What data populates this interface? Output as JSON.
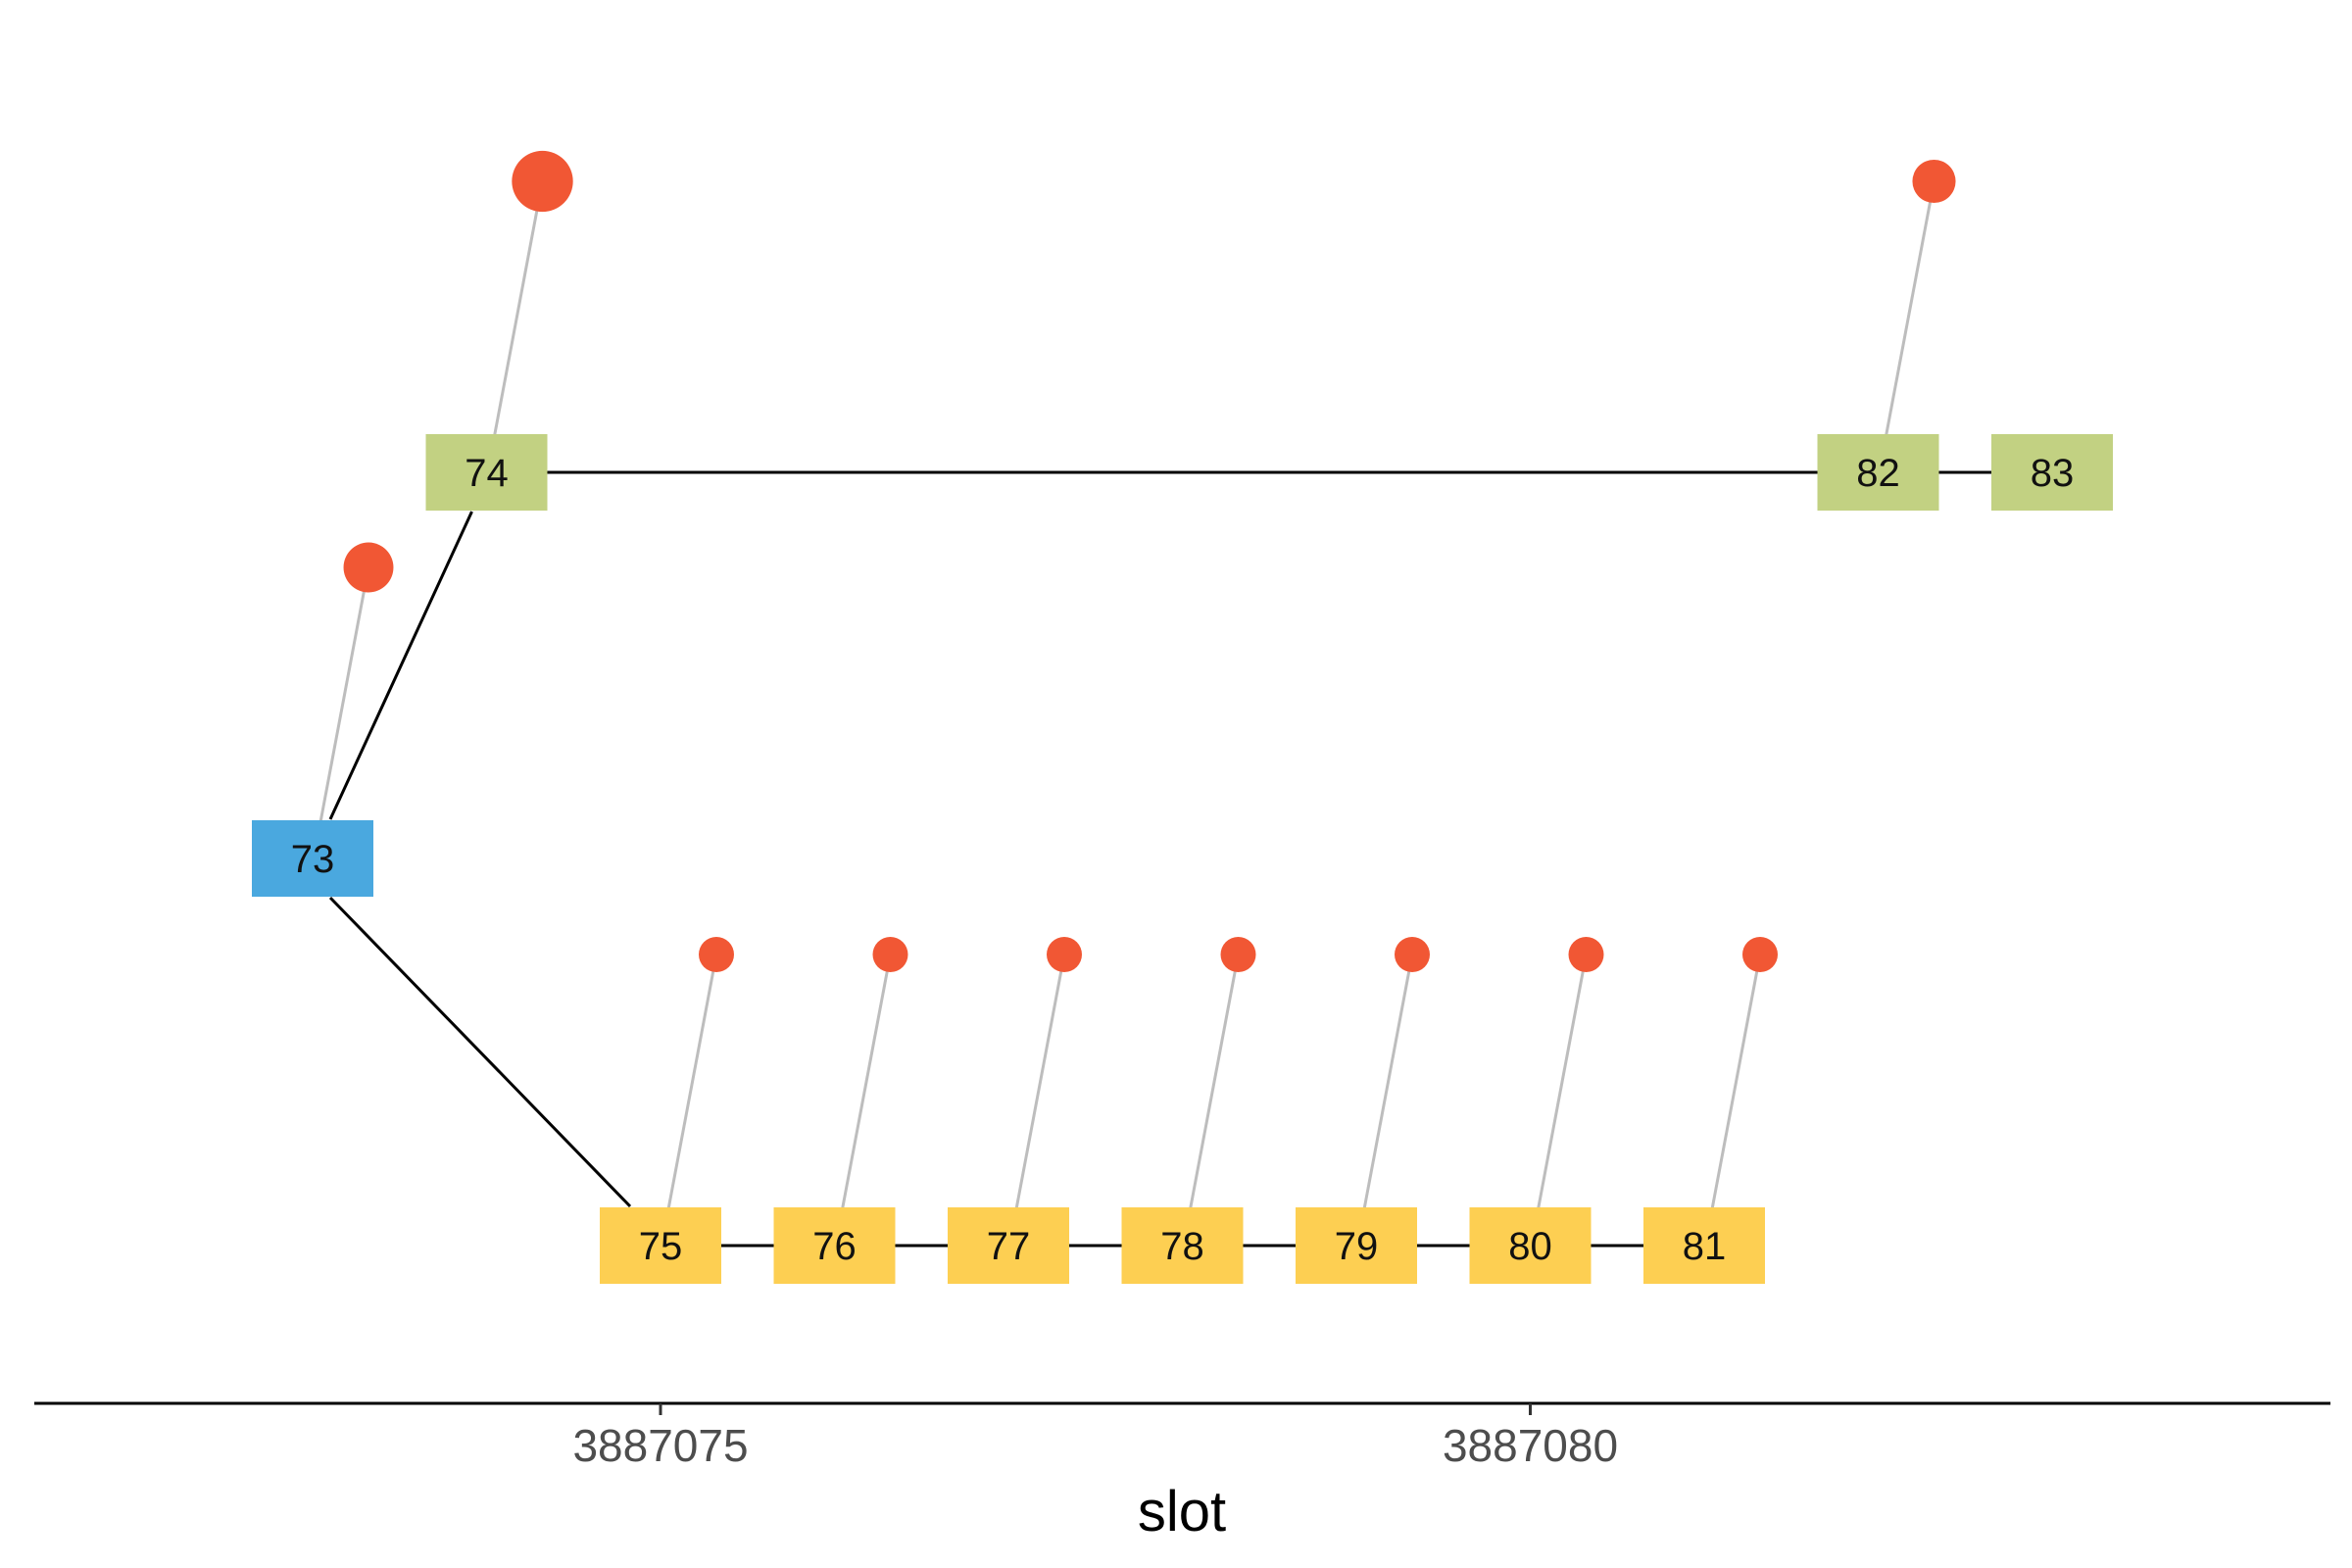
{
  "chart_data": {
    "type": "tree-timeline",
    "xlabel": "slot",
    "x_ticks": [
      3887075,
      3887080
    ],
    "x_range": [
      3887071.4,
      3887084.6
    ],
    "colors": {
      "chain_root": "#4aa8df",
      "chain_green": "#c2d182",
      "chain_yellow": "#fdcf52",
      "attestation": "#f15734",
      "edge": "#000000",
      "stem": "#bdbdbd"
    },
    "nodes": [
      {
        "id": "73",
        "slot": 3887073,
        "row": 2,
        "group": "chain_root",
        "attestation": 2
      },
      {
        "id": "74",
        "slot": 3887074,
        "row": 3,
        "group": "chain_green",
        "attestation": 3
      },
      {
        "id": "75",
        "slot": 3887075,
        "row": 1,
        "group": "chain_yellow",
        "attestation": 1
      },
      {
        "id": "76",
        "slot": 3887076,
        "row": 1,
        "group": "chain_yellow",
        "attestation": 1
      },
      {
        "id": "77",
        "slot": 3887077,
        "row": 1,
        "group": "chain_yellow",
        "attestation": 1
      },
      {
        "id": "78",
        "slot": 3887078,
        "row": 1,
        "group": "chain_yellow",
        "attestation": 1
      },
      {
        "id": "79",
        "slot": 3887079,
        "row": 1,
        "group": "chain_yellow",
        "attestation": 1
      },
      {
        "id": "80",
        "slot": 3887080,
        "row": 1,
        "group": "chain_yellow",
        "attestation": 1
      },
      {
        "id": "81",
        "slot": 3887081,
        "row": 1,
        "group": "chain_yellow",
        "attestation": 1
      },
      {
        "id": "82",
        "slot": 3887082,
        "row": 3,
        "group": "chain_green",
        "attestation": 1.5
      },
      {
        "id": "83",
        "slot": 3887083,
        "row": 3,
        "group": "chain_green",
        "attestation": 0
      }
    ],
    "edges": [
      [
        "73",
        "74"
      ],
      [
        "73",
        "75"
      ],
      [
        "74",
        "82"
      ],
      [
        "82",
        "83"
      ],
      [
        "75",
        "76"
      ],
      [
        "76",
        "77"
      ],
      [
        "77",
        "78"
      ],
      [
        "78",
        "79"
      ],
      [
        "79",
        "80"
      ],
      [
        "80",
        "81"
      ]
    ]
  }
}
